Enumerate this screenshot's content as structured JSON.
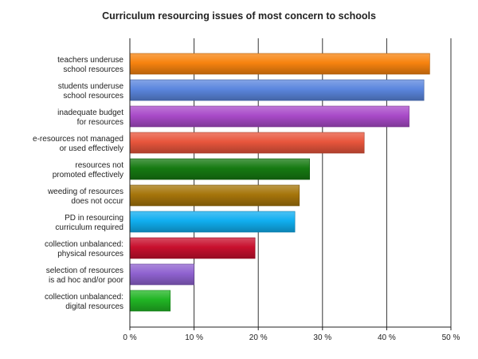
{
  "chart_data": {
    "type": "bar",
    "orientation": "horizontal",
    "title": "Curriculum resourcing issues of most concern to schools",
    "xlabel": "",
    "ylabel": "",
    "xlim": [
      0,
      50
    ],
    "x_ticks": [
      0,
      10,
      20,
      30,
      40,
      50
    ],
    "tick_suffix": " %",
    "grid": true,
    "legend": "none",
    "categories": [
      [
        "teachers underuse",
        "school resources"
      ],
      [
        "students underuse",
        "school resources"
      ],
      [
        "inadequate budget",
        "for resources"
      ],
      [
        "e-resources not managed",
        "or used effectively"
      ],
      [
        "resources not",
        "promoted effectively"
      ],
      [
        "weeding of resources",
        "does not occur"
      ],
      [
        "PD in resourcing",
        "curriculum required"
      ],
      [
        "collection unbalanced:",
        "physical resources"
      ],
      [
        "selection of resources",
        "is ad hoc and/or poor"
      ],
      [
        "collection unbalanced:",
        "digital resources"
      ]
    ],
    "values": [
      46.7,
      45.8,
      43.5,
      36.5,
      28.0,
      26.4,
      25.7,
      19.5,
      10.0,
      6.3
    ],
    "colors": [
      "#f7830f",
      "#5b86de",
      "#a94bc9",
      "#e8553c",
      "#167a12",
      "#a6750b",
      "#10aef0",
      "#c8102e",
      "#8f62d0",
      "#21b524"
    ]
  }
}
